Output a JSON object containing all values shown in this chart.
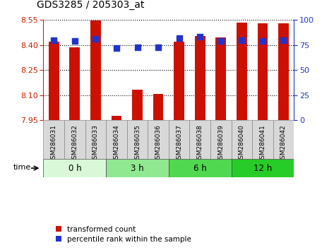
{
  "title": "GDS3285 / 205303_at",
  "samples": [
    "GSM286031",
    "GSM286032",
    "GSM286033",
    "GSM286034",
    "GSM286035",
    "GSM286036",
    "GSM286037",
    "GSM286038",
    "GSM286039",
    "GSM286040",
    "GSM286041",
    "GSM286042"
  ],
  "transformed_count": [
    8.42,
    8.385,
    8.548,
    7.975,
    8.13,
    8.108,
    8.42,
    8.455,
    8.445,
    8.535,
    8.53,
    8.53
  ],
  "percentile_rank": [
    80,
    79,
    81,
    72,
    73,
    73,
    82,
    83,
    79,
    80,
    79,
    80
  ],
  "groups": [
    {
      "label": "0 h",
      "start": 0,
      "end": 3,
      "color": "#d8f8d8"
    },
    {
      "label": "3 h",
      "start": 3,
      "end": 6,
      "color": "#90e890"
    },
    {
      "label": "6 h",
      "start": 6,
      "end": 9,
      "color": "#50d850"
    },
    {
      "label": "12 h",
      "start": 9,
      "end": 12,
      "color": "#28cc28"
    }
  ],
  "ylim_left": [
    7.95,
    8.55
  ],
  "yticks_left": [
    7.95,
    8.1,
    8.25,
    8.4,
    8.55
  ],
  "ylim_right": [
    0,
    100
  ],
  "yticks_right": [
    0,
    25,
    50,
    75,
    100
  ],
  "bar_color": "#cc1100",
  "dot_color": "#2233cc",
  "background_color": "#ffffff",
  "left_axis_color": "#cc2200",
  "right_axis_color": "#2233cc",
  "bar_width": 0.5,
  "dot_size": 28,
  "xticklabel_bg": "#d8d8d8",
  "xticklabel_edge": "#888888"
}
